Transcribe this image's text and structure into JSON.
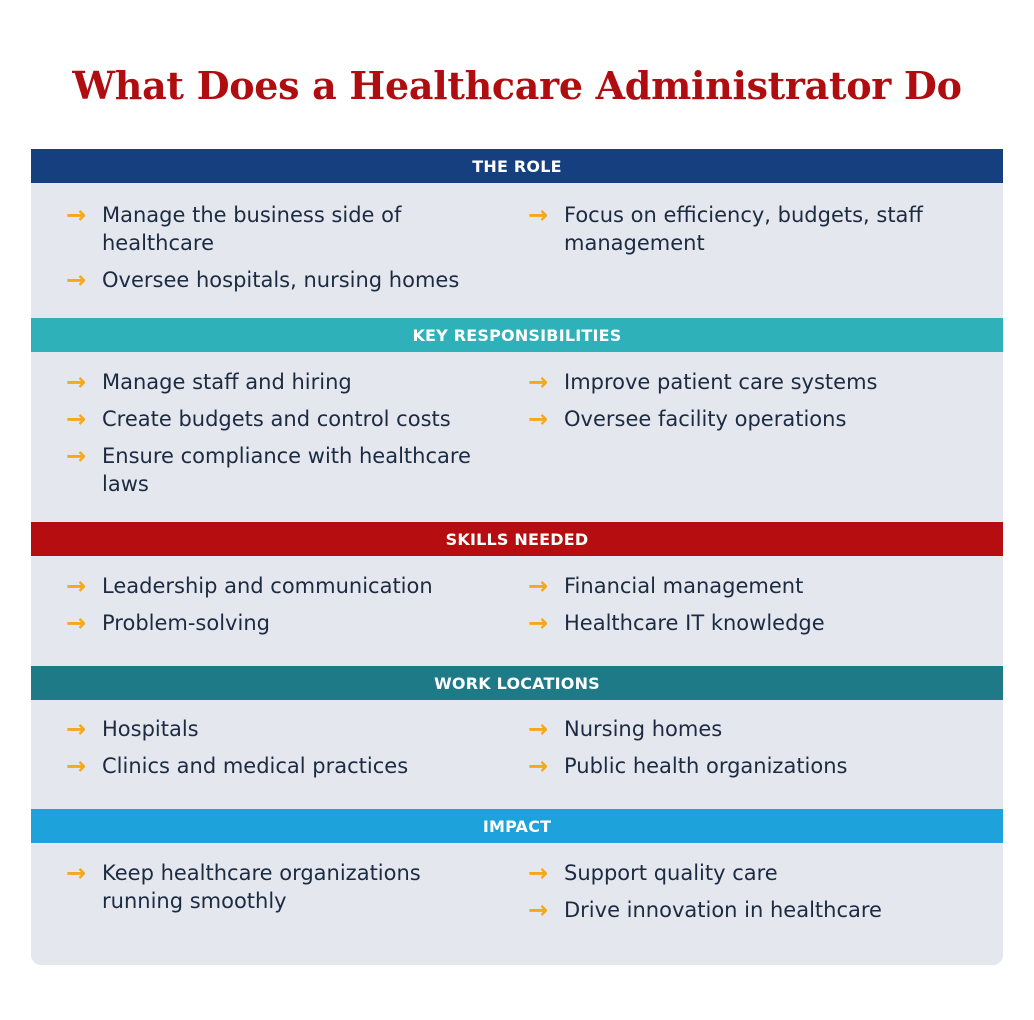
{
  "title": "What Does a Healthcare Administrator Do",
  "colors": {
    "title": "#b00d10",
    "card_bg": "#e4e8ee",
    "arrow": "#f6a81c",
    "text": "#1c2a42"
  },
  "arrow_glyph": "→",
  "sections": [
    {
      "header": "THE ROLE",
      "color": "#163f7f",
      "left": [
        "Manage the business side of healthcare",
        "Oversee hospitals, nursing homes"
      ],
      "right": [
        "Focus on efficiency, budgets, staff management"
      ]
    },
    {
      "header": "KEY RESPONSIBILITIES",
      "color": "#2fb1b9",
      "left": [
        "Manage staff and hiring",
        "Create budgets and control costs",
        "Ensure compliance with healthcare laws"
      ],
      "right": [
        "Improve patient care systems",
        "Oversee facility operations"
      ]
    },
    {
      "header": "SKILLS NEEDED",
      "color": "#b50d10",
      "left": [
        "Leadership and communication",
        "Problem-solving"
      ],
      "right": [
        "Financial management",
        "Healthcare IT knowledge"
      ]
    },
    {
      "header": "WORK LOCATIONS",
      "color": "#1f7a88",
      "left": [
        "Hospitals",
        "Clinics and medical practices"
      ],
      "right": [
        "Nursing homes",
        "Public health organizations"
      ]
    },
    {
      "header": "IMPACT",
      "color": "#1ea2dc",
      "left": [
        "Keep healthcare organizations running smoothly"
      ],
      "right": [
        "Support quality care",
        "Drive innovation in healthcare"
      ]
    }
  ]
}
